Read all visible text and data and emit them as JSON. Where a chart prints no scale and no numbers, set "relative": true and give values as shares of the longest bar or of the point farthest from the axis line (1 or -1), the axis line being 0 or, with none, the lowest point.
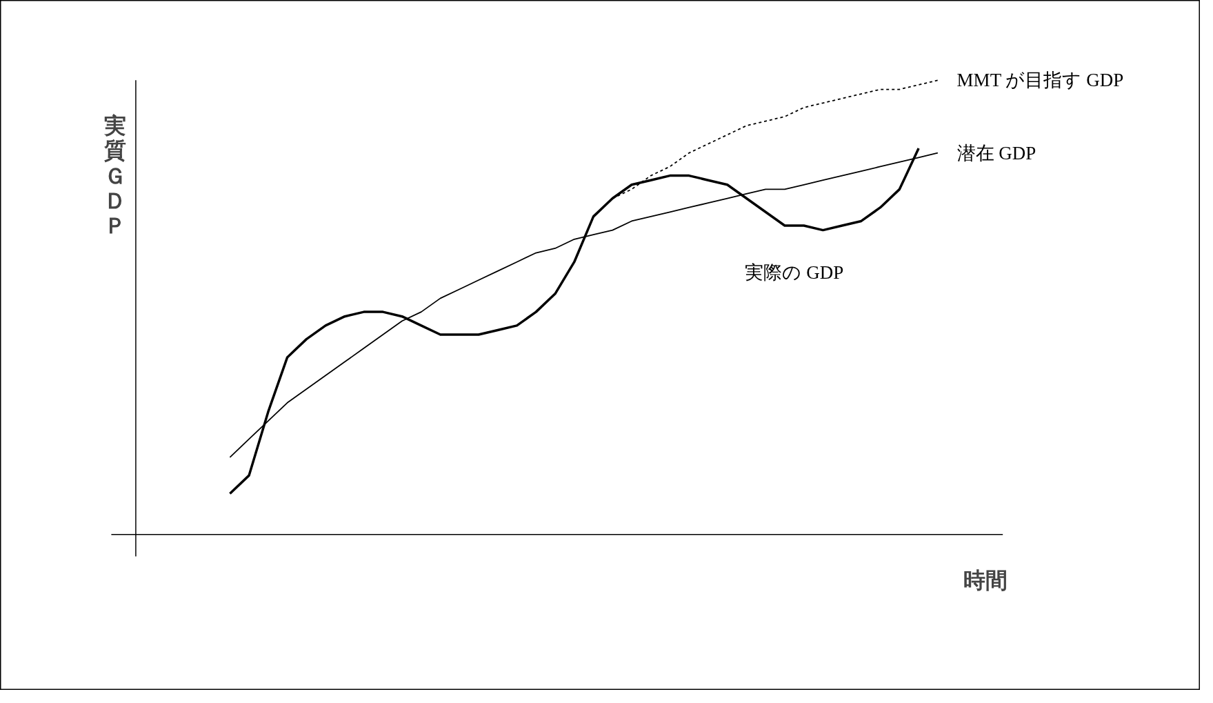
{
  "chart_data": {
    "type": "line",
    "relative": true,
    "xlabel": "時間",
    "ylabel": "実質ＧＤＰ",
    "grid": false,
    "categories": [
      null,
      null,
      null,
      null,
      null,
      null,
      null,
      null,
      null,
      null,
      null,
      null,
      null,
      null,
      null,
      null,
      null,
      null,
      null,
      null,
      null,
      null,
      null,
      null,
      null,
      null,
      null,
      null,
      null,
      null,
      null,
      null,
      null,
      null,
      null,
      null,
      null,
      null
    ],
    "series": [
      {
        "name": "実際の GDP",
        "color": "#000000",
        "line_style": "solid",
        "values": [
          0.09,
          0.13,
          0.27,
          0.39,
          0.43,
          0.46,
          0.48,
          0.49,
          0.49,
          0.48,
          0.46,
          0.44,
          0.44,
          0.44,
          0.45,
          0.46,
          0.49,
          0.53,
          0.6,
          0.7,
          0.74,
          0.77,
          0.78,
          0.79,
          0.79,
          0.78,
          0.77,
          0.74,
          0.71,
          0.68,
          0.68,
          0.67,
          0.68,
          0.69,
          0.72,
          0.76,
          0.85,
          null
        ]
      },
      {
        "name": "潜在 GDP",
        "color": "#000000",
        "line_style": "solid",
        "values": [
          0.17,
          0.21,
          0.25,
          0.29,
          0.32,
          0.35,
          0.38,
          0.41,
          0.44,
          0.47,
          0.49,
          0.52,
          0.54,
          0.56,
          0.58,
          0.6,
          0.62,
          0.63,
          0.65,
          0.66,
          0.67,
          0.69,
          0.7,
          0.71,
          0.72,
          0.73,
          0.74,
          0.75,
          0.76,
          0.76,
          0.77,
          0.78,
          0.79,
          0.8,
          0.81,
          0.82,
          0.83,
          0.84
        ]
      },
      {
        "name": "MMT が目指す GDP",
        "color": "#000000",
        "line_style": "dashed",
        "values": [
          null,
          null,
          null,
          null,
          null,
          null,
          null,
          null,
          null,
          null,
          null,
          null,
          null,
          null,
          null,
          null,
          null,
          null,
          null,
          null,
          0.74,
          0.76,
          0.79,
          0.81,
          0.84,
          0.86,
          0.88,
          0.9,
          0.91,
          0.92,
          0.94,
          0.95,
          0.96,
          0.97,
          0.98,
          0.98,
          0.99,
          1.0
        ]
      }
    ]
  }
}
